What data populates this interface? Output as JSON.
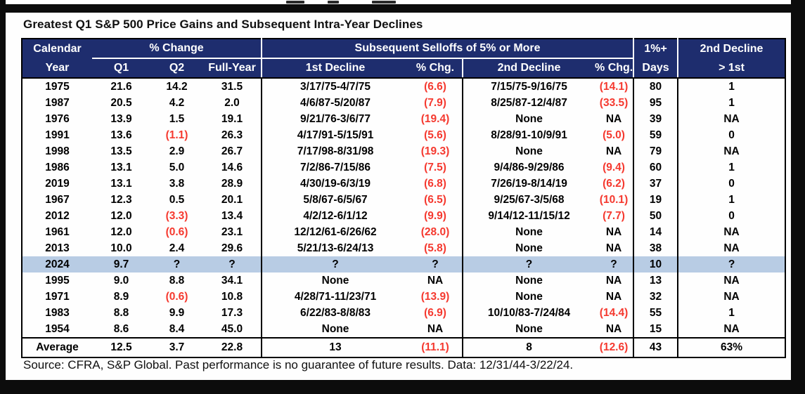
{
  "title": "Greatest Q1 S&P 500 Price Gains and Subsequent Intra-Year Declines",
  "source_note": "Source: CFRA, S&P Global. Past performance is no guarantee of future results. Data: 12/31/44-3/22/24.",
  "colors": {
    "header_bg": "#1e2d6e",
    "highlight_row_bg": "#b8cce4",
    "negative": "#f5392f",
    "text": "#000000"
  },
  "chart_data": {
    "type": "table",
    "title": "Greatest Q1 S&P 500 Price Gains and Subsequent Intra-Year Declines",
    "column_groups": [
      {
        "label": "Calendar",
        "span": 1,
        "underline": false
      },
      {
        "label": "% Change",
        "span": 3,
        "underline": true
      },
      {
        "label": "Subsequent Selloffs of 5% or More",
        "span": 4,
        "underline": true
      },
      {
        "label": "1%+",
        "span": 1,
        "underline": false
      },
      {
        "label": "2nd Decline",
        "span": 1,
        "underline": false
      }
    ],
    "columns": [
      "Year",
      "Q1",
      "Q2",
      "Full-Year",
      "1st Decline",
      "% Chg.",
      "2nd Decline",
      "% Chg.",
      "Days",
      "> 1st"
    ],
    "rows": [
      [
        "1975",
        "21.6",
        "14.2",
        "31.5",
        "3/17/75-4/7/75",
        "(6.6)",
        "7/15/75-9/16/75",
        "(14.1)",
        "80",
        "1"
      ],
      [
        "1987",
        "20.5",
        "4.2",
        "2.0",
        "4/6/87-5/20/87",
        "(7.9)",
        "8/25/87-12/4/87",
        "(33.5)",
        "95",
        "1"
      ],
      [
        "1976",
        "13.9",
        "1.5",
        "19.1",
        "9/21/76-3/6/77",
        "(19.4)",
        "None",
        "NA",
        "39",
        "NA"
      ],
      [
        "1991",
        "13.6",
        "(1.1)",
        "26.3",
        "4/17/91-5/15/91",
        "(5.6)",
        "8/28/91-10/9/91",
        "(5.0)",
        "59",
        "0"
      ],
      [
        "1998",
        "13.5",
        "2.9",
        "26.7",
        "7/17/98-8/31/98",
        "(19.3)",
        "None",
        "NA",
        "79",
        "NA"
      ],
      [
        "1986",
        "13.1",
        "5.0",
        "14.6",
        "7/2/86-7/15/86",
        "(7.5)",
        "9/4/86-9/29/86",
        "(9.4)",
        "60",
        "1"
      ],
      [
        "2019",
        "13.1",
        "3.8",
        "28.9",
        "4/30/19-6/3/19",
        "(6.8)",
        "7/26/19-8/14/19",
        "(6.2)",
        "37",
        "0"
      ],
      [
        "1967",
        "12.3",
        "0.5",
        "20.1",
        "5/8/67-6/5/67",
        "(6.5)",
        "9/25/67-3/5/68",
        "(10.1)",
        "19",
        "1"
      ],
      [
        "2012",
        "12.0",
        "(3.3)",
        "13.4",
        "4/2/12-6/1/12",
        "(9.9)",
        "9/14/12-11/15/12",
        "(7.7)",
        "50",
        "0"
      ],
      [
        "1961",
        "12.0",
        "(0.6)",
        "23.1",
        "12/12/61-6/26/62",
        "(28.0)",
        "None",
        "NA",
        "14",
        "NA"
      ],
      [
        "2013",
        "10.0",
        "2.4",
        "29.6",
        "5/21/13-6/24/13",
        "(5.8)",
        "None",
        "NA",
        "38",
        "NA"
      ],
      [
        "2024",
        "9.7",
        "?",
        "?",
        "?",
        "?",
        "?",
        "?",
        "10",
        "?"
      ],
      [
        "1995",
        "9.0",
        "8.8",
        "34.1",
        "None",
        "NA",
        "None",
        "NA",
        "13",
        "NA"
      ],
      [
        "1971",
        "8.9",
        "(0.6)",
        "10.8",
        "4/28/71-11/23/71",
        "(13.9)",
        "None",
        "NA",
        "32",
        "NA"
      ],
      [
        "1983",
        "8.8",
        "9.9",
        "17.3",
        "6/22/83-8/8/83",
        "(6.9)",
        "10/10/83-7/24/84",
        "(14.4)",
        "55",
        "1"
      ],
      [
        "1954",
        "8.6",
        "8.4",
        "45.0",
        "None",
        "NA",
        "None",
        "NA",
        "15",
        "NA"
      ]
    ],
    "highlighted_row_index": 11,
    "highlighted_row_year": "2024",
    "average_row": [
      "Average",
      "12.5",
      "3.7",
      "22.8",
      "13",
      "(11.1)",
      "8",
      "(12.6)",
      "43",
      "63%"
    ],
    "source": "Source: CFRA, S&P Global. Past performance is no guarantee of future results. Data: 12/31/44-3/22/24."
  }
}
